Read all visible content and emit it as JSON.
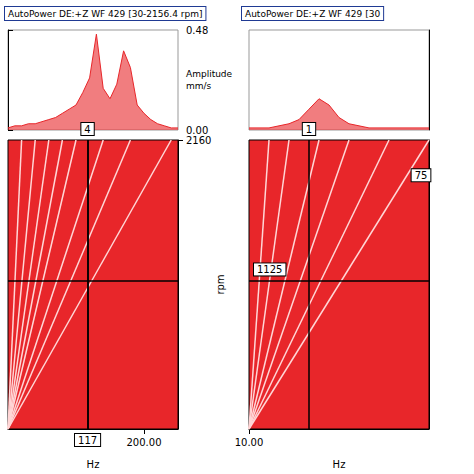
{
  "chart_data": [
    {
      "type": "waterfall",
      "title": "AutoPower DE:+Z WF 429 [30-2156.4 rpm]",
      "x_label": "Hz",
      "y_label": "rpm",
      "z_label": "Amplitude",
      "z_unit": "mm/s",
      "color": "#e8262a",
      "xlim": [
        0,
        250
      ],
      "xticks": [
        {
          "value": 200,
          "label": "200.00"
        }
      ],
      "ylim": [
        30,
        2160
      ],
      "yticks": [
        2160
      ],
      "zlim": [
        0,
        0.48
      ],
      "zticks": [
        {
          "value": 0,
          "label": "0.00"
        },
        {
          "value": 0.48,
          "label": "0.48"
        }
      ],
      "spectrum": {
        "x": [
          0,
          10,
          20,
          30,
          40,
          50,
          60,
          70,
          80,
          90,
          100,
          110,
          120,
          130,
          140,
          150,
          160,
          170,
          180,
          190,
          200,
          210,
          220,
          230,
          240,
          250
        ],
        "values": [
          0.01,
          0.02,
          0.02,
          0.03,
          0.03,
          0.04,
          0.05,
          0.06,
          0.08,
          0.1,
          0.12,
          0.18,
          0.25,
          0.46,
          0.2,
          0.15,
          0.22,
          0.38,
          0.3,
          0.12,
          0.08,
          0.05,
          0.03,
          0.02,
          0.01,
          0.01
        ]
      },
      "order_lines": [
        [
          [
            0,
            30
          ],
          [
            20,
            2160
          ]
        ],
        [
          [
            0,
            30
          ],
          [
            40,
            2160
          ]
        ],
        [
          [
            0,
            30
          ],
          [
            60,
            2160
          ]
        ],
        [
          [
            0,
            30
          ],
          [
            80,
            2160
          ]
        ],
        [
          [
            0,
            30
          ],
          [
            100,
            2160
          ]
        ],
        [
          [
            0,
            30
          ],
          [
            140,
            2160
          ]
        ],
        [
          [
            0,
            30
          ],
          [
            180,
            2160
          ]
        ],
        [
          [
            0,
            30
          ],
          [
            240,
            2160
          ]
        ]
      ],
      "cursors": [
        {
          "axis": "x",
          "value": 117,
          "label": "117",
          "end_label": "4"
        },
        {
          "axis": "y",
          "value": 1125
        }
      ],
      "annotations": []
    },
    {
      "type": "waterfall",
      "title": "AutoPower DE:+Z WF 429 [30",
      "x_label": "Hz",
      "color": "#e8262a",
      "xlim": [
        10,
        100
      ],
      "xticks": [
        {
          "value": 10,
          "label": "10.00"
        }
      ],
      "ylim": [
        30,
        2160
      ],
      "zlim": [
        0,
        0.48
      ],
      "spectrum": {
        "x": [
          10,
          15,
          20,
          25,
          30,
          35,
          40,
          45,
          50,
          55,
          60,
          65,
          70,
          75,
          80,
          85,
          90,
          95,
          100
        ],
        "values": [
          0.01,
          0.01,
          0.01,
          0.02,
          0.03,
          0.05,
          0.1,
          0.15,
          0.12,
          0.06,
          0.03,
          0.02,
          0.01,
          0.01,
          0.01,
          0.01,
          0.01,
          0.01,
          0.01
        ]
      },
      "order_lines": [
        [
          [
            10,
            30
          ],
          [
            20,
            2160
          ]
        ],
        [
          [
            10,
            30
          ],
          [
            30,
            2160
          ]
        ],
        [
          [
            10,
            30
          ],
          [
            45,
            2160
          ]
        ],
        [
          [
            10,
            30
          ],
          [
            60,
            2160
          ]
        ],
        [
          [
            10,
            30
          ],
          [
            80,
            2160
          ]
        ],
        [
          [
            10,
            30
          ],
          [
            100,
            2160
          ]
        ]
      ],
      "cursors": [
        {
          "axis": "x",
          "value": 40,
          "end_label": "1"
        },
        {
          "axis": "y",
          "value": 1125,
          "label": "1125"
        }
      ],
      "annotations": [
        {
          "text": "75",
          "x": 96,
          "y": 1900
        }
      ]
    }
  ]
}
